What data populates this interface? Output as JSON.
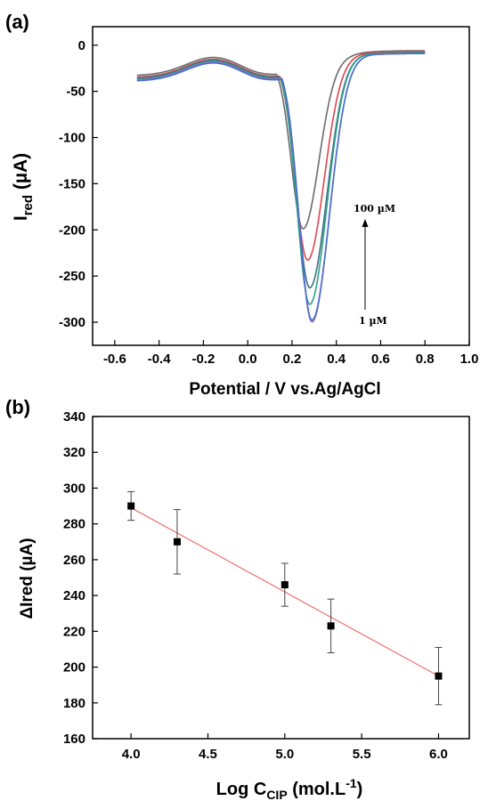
{
  "chart_data": [
    {
      "panel_label": "(a)",
      "type": "line",
      "xlabel": "Potential / V vs.Ag/AgCl",
      "ylabel_main": "I",
      "ylabel_sub": "red",
      "ylabel_unit": " (µA)",
      "xlim": [
        -0.7,
        1.0
      ],
      "ylim": [
        -325,
        20
      ],
      "xticks": [
        -0.6,
        -0.4,
        -0.2,
        0.0,
        0.2,
        0.4,
        0.6,
        0.8,
        1.0
      ],
      "xtick_labels": [
        "-0.6",
        "-0.4",
        "-0.2",
        "0.0",
        "0.2",
        "0.4",
        "0.6",
        "0.8",
        "1.0"
      ],
      "yticks": [
        0,
        -50,
        -100,
        -150,
        -200,
        -250,
        -300
      ],
      "ytick_labels": [
        "0",
        "-50",
        "-100",
        "-150",
        "-200",
        "-250",
        "-300"
      ],
      "grid": false,
      "annotations": {
        "top": "100 µM",
        "bottom": "1 µM"
      },
      "series": [
        {
          "color": "#6b6b6b",
          "peak_x": 0.25,
          "peak_y": -199,
          "width": 0.1,
          "start_y": -33,
          "end_y": -6
        },
        {
          "color": "#e0454f",
          "peak_x": 0.27,
          "peak_y": -233,
          "width": 0.105,
          "start_y": -35,
          "end_y": -7
        },
        {
          "color": "#3d6f86",
          "peak_x": 0.28,
          "peak_y": -263,
          "width": 0.108,
          "start_y": -36,
          "end_y": -8
        },
        {
          "color": "#2fa085",
          "peak_x": 0.28,
          "peak_y": -281,
          "width": 0.108,
          "start_y": -37,
          "end_y": -8
        },
        {
          "color": "#8a6fc0",
          "peak_x": 0.29,
          "peak_y": -300,
          "width": 0.11,
          "start_y": -38,
          "end_y": -9
        },
        {
          "color": "#4a6fd0",
          "peak_x": 0.29,
          "peak_y": -298,
          "width": 0.11,
          "start_y": -39,
          "end_y": -9
        }
      ]
    },
    {
      "panel_label": "(b)",
      "type": "scatter",
      "xlabel_main": "Log C",
      "xlabel_sub": "CIP",
      "xlabel_rest": " (mol.L",
      "xlabel_sup": "-1",
      "xlabel_end": ")",
      "ylabel": "ΔIred (µA)",
      "xlim": [
        3.75,
        6.2
      ],
      "ylim": [
        160,
        340
      ],
      "xticks": [
        4.0,
        4.5,
        5.0,
        5.5,
        6.0
      ],
      "xtick_labels": [
        "4.0",
        "4.5",
        "5.0",
        "5.5",
        "6.0"
      ],
      "yticks": [
        160,
        180,
        200,
        220,
        240,
        260,
        280,
        300,
        320,
        340
      ],
      "ytick_labels": [
        "160",
        "180",
        "200",
        "220",
        "240",
        "260",
        "280",
        "300",
        "320",
        "340"
      ],
      "grid": false,
      "points": [
        {
          "x": 4.0,
          "y": 290,
          "err_low": 282,
          "err_high": 298
        },
        {
          "x": 4.3,
          "y": 270,
          "err_low": 252,
          "err_high": 288
        },
        {
          "x": 5.0,
          "y": 246,
          "err_low": 234,
          "err_high": 258
        },
        {
          "x": 5.3,
          "y": 223,
          "err_low": 208,
          "err_high": 238
        },
        {
          "x": 6.0,
          "y": 195,
          "err_low": 179,
          "err_high": 211
        }
      ],
      "fit_line": {
        "x": [
          4.0,
          6.0
        ],
        "y": [
          289,
          195
        ],
        "color": "#f07070"
      },
      "marker_color": "#000000"
    }
  ]
}
